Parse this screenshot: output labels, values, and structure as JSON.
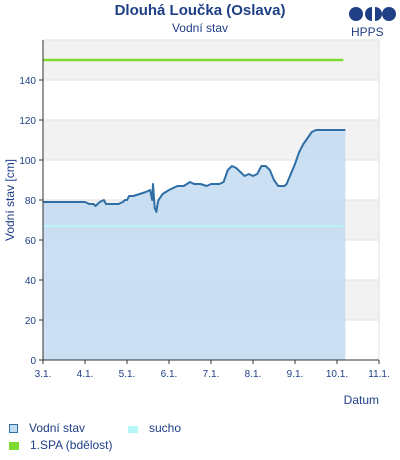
{
  "header": {
    "title": "Dlouhá Loučka (Oslava)",
    "subtitle": "Vodní stav",
    "logo_text": "HPPS"
  },
  "colors": {
    "text": "#1f3f86",
    "series_line": "#2f6fa6",
    "series_fill": "#c3dbf2",
    "drought": "#b8f5f6",
    "spa1": "#7ddb2d",
    "band": "#f2f2f2",
    "grid": "#e2e2e2"
  },
  "chart_data": {
    "type": "line",
    "ylabel": "Vodní stav [cm]",
    "xlabel": "Datum",
    "ylim": [
      0,
      160
    ],
    "yticks": [
      0,
      20,
      40,
      60,
      80,
      100,
      120,
      140
    ],
    "xlim": [
      3.0,
      11.0
    ],
    "xtick_values": [
      3,
      4,
      5,
      6,
      7,
      8,
      9,
      10,
      11
    ],
    "xtick_labels": [
      "3.1.",
      "4.1.",
      "5.1.",
      "6.1.",
      "7.1.",
      "8.1.",
      "9.1.",
      "10.1.",
      "11.1."
    ],
    "series": [
      {
        "name": "Vodní stav",
        "x": [
          3.0,
          4.0,
          4.1,
          4.2,
          4.25,
          4.35,
          4.45,
          4.5,
          4.6,
          4.8,
          4.9,
          4.95,
          5.0,
          5.05,
          5.15,
          5.3,
          5.45,
          5.55,
          5.6,
          5.62,
          5.66,
          5.7,
          5.72,
          5.75,
          5.85,
          6.0,
          6.2,
          6.35,
          6.5,
          6.6,
          6.75,
          6.9,
          7.0,
          7.2,
          7.3,
          7.4,
          7.5,
          7.6,
          7.8,
          7.9,
          8.0,
          8.1,
          8.2,
          8.3,
          8.4,
          8.5,
          8.6,
          8.75,
          8.8,
          8.9,
          9.0,
          9.05,
          9.1,
          9.2,
          9.3,
          9.4,
          9.5,
          9.6,
          9.7,
          9.8,
          9.9,
          10.0,
          10.05,
          10.1,
          10.15,
          10.2
        ],
        "y": [
          79,
          79,
          78,
          78,
          77,
          79,
          80,
          78,
          78,
          78,
          79,
          80,
          80,
          82,
          82,
          83,
          84,
          85,
          80,
          88,
          76,
          74,
          77,
          80,
          83,
          85,
          87,
          87,
          89,
          88,
          88,
          87,
          88,
          88,
          89,
          95,
          97,
          96,
          92,
          93,
          92,
          93,
          97,
          97,
          95,
          90,
          87,
          87,
          88,
          93,
          98,
          101,
          104,
          108,
          111,
          114,
          115,
          115,
          115,
          115,
          115,
          115,
          115,
          115,
          115,
          115
        ]
      },
      {
        "name": "sucho",
        "x": [
          3.0,
          10.15
        ],
        "y": [
          67,
          67
        ]
      },
      {
        "name": "1.SPA (bdělost)",
        "x": [
          3.0,
          10.15
        ],
        "y": [
          150,
          150
        ]
      }
    ],
    "legend": [
      {
        "label": "Vodní stav",
        "key": "series"
      },
      {
        "label": "sucho",
        "key": "drought"
      },
      {
        "label": "1.SPA (bdělost)",
        "key": "spa1"
      }
    ]
  }
}
